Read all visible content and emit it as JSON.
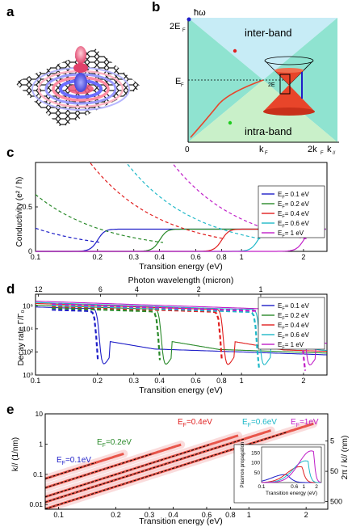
{
  "panel_labels": {
    "a": "a",
    "b": "b",
    "c": "c",
    "d": "d",
    "e": "e"
  },
  "panel_b": {
    "y_axis_label": "ħω",
    "y_tick_2ef": "2E",
    "y_tick_ef": "E",
    "sub_f": "F",
    "x_tick_0": "0",
    "x_tick_kf": "k",
    "x_tick_2kf": "2k",
    "x_axis_label": "k",
    "x_axis_sub": "//",
    "region_inter": "inter-band",
    "region_intra": "intra-band",
    "inset_label": "2E",
    "colors": {
      "inter": "#c7ecf6",
      "intra": "#c9f0c9",
      "sides": "#7fe0c9",
      "cone": "#e8452a"
    }
  },
  "chart_data": [
    {
      "id": "c",
      "type": "line",
      "ylabel": "Conductivity (e² / ħ)",
      "xlabel": "Transition energy (eV)",
      "x_scale": "log",
      "xlim": [
        0.1,
        2.6
      ],
      "ylim": [
        0,
        1.0
      ],
      "x_ticks": [
        0.1,
        0.2,
        0.3,
        0.4,
        0.6,
        0.8,
        1,
        2
      ],
      "x_tick_labels": [
        "0.1",
        "0.2",
        "0.3",
        "0.4",
        "0.6",
        "0.8",
        "1",
        "2"
      ],
      "y_ticks": [
        0,
        0.5
      ],
      "y_tick_labels": [
        "0",
        "0.5"
      ],
      "legend_position": "right",
      "series": [
        {
          "name": "E_F= 0.1 eV",
          "color": "#1f1fc8",
          "ef": 0.1
        },
        {
          "name": "E_F= 0.2 eV",
          "color": "#2a8a2a",
          "ef": 0.2
        },
        {
          "name": "E_F= 0.4 eV",
          "color": "#e01f1f",
          "ef": 0.4
        },
        {
          "name": "E_F= 0.6 eV",
          "color": "#1fb8c8",
          "ef": 0.6
        },
        {
          "name": "E_F= 1 eV",
          "color": "#c01fc8",
          "ef": 1.0
        }
      ],
      "plateau": 0.25
    },
    {
      "id": "d",
      "type": "line",
      "ylabel": "Decay rate Γ/Γ₀",
      "xlabel": "Transition energy (eV)",
      "top_label": "Photon wavelength (micron)",
      "x_scale": "log",
      "y_scale": "log",
      "xlim": [
        0.1,
        2.6
      ],
      "ylim": [
        1,
        10000000
      ],
      "x_ticks": [
        0.1,
        0.2,
        0.3,
        0.4,
        0.6,
        0.8,
        1,
        2
      ],
      "x_tick_labels": [
        "0.1",
        "0.2",
        "0.3",
        "0.4",
        "0.6",
        "0.8",
        "1",
        "2"
      ],
      "y_ticks": [
        1,
        100,
        10000,
        1000000
      ],
      "y_tick_labels": [
        "10⁰",
        "10²",
        "10⁴",
        "10⁶"
      ],
      "top_ticks": [
        12,
        6,
        4,
        2,
        1
      ],
      "top_tick_labels": [
        "12",
        "6",
        "4",
        "2",
        "1"
      ],
      "legend_position": "right",
      "series": [
        {
          "name": "E_F= 0.1 eV",
          "color": "#1f1fc8",
          "ef": 0.1
        },
        {
          "name": "E_F= 0.2 eV",
          "color": "#2a8a2a",
          "ef": 0.2
        },
        {
          "name": "E_F= 0.4 eV",
          "color": "#e01f1f",
          "ef": 0.4
        },
        {
          "name": "E_F= 0.6 eV",
          "color": "#1fb8c8",
          "ef": 0.6
        },
        {
          "name": "E_F= 1 eV",
          "color": "#c01fc8",
          "ef": 1.0
        }
      ]
    },
    {
      "id": "e",
      "type": "heatmap",
      "ylabel": "k// (1/nm)",
      "ylabel_right": "2π / k// (nm)",
      "xlabel": "Transition energy (eV)",
      "x_scale": "log",
      "y_scale": "log",
      "xlim": [
        0.085,
        2.6
      ],
      "ylim": [
        0.007,
        10
      ],
      "x_ticks": [
        0.1,
        0.2,
        0.3,
        0.4,
        0.6,
        0.8,
        1,
        2
      ],
      "x_tick_labels": [
        "0.1",
        "0.2",
        "0.3",
        "0.4",
        "0.6",
        "0.8",
        "1",
        "2"
      ],
      "y_ticks": [
        0.01,
        0.1,
        1,
        10
      ],
      "y_tick_labels": [
        "0.01",
        "0.1",
        "1",
        "10"
      ],
      "right_ticks": [
        5,
        50,
        500
      ],
      "right_tick_labels": [
        "5",
        "50",
        "500"
      ],
      "annotations": [
        {
          "text": "E_F=0.1eV",
          "color": "#1f1fc8"
        },
        {
          "text": "E_F=0.2eV",
          "color": "#2a8a2a"
        },
        {
          "text": "E_F=0.4eV",
          "color": "#e01f1f"
        },
        {
          "text": "E_F=0.6eV",
          "color": "#1fb8c8"
        },
        {
          "text": "E_F=1eV",
          "color": "#c01fc8"
        }
      ],
      "inset": {
        "ylabel": "Plasmon propagation",
        "xlabel": "Transition energy (eV)",
        "y_ticks": [
          50,
          100,
          150
        ],
        "y_tick_labels": [
          "50",
          "100",
          "150"
        ],
        "x_tick_labels": [
          "0.1",
          "0.6",
          "1",
          "2"
        ]
      }
    }
  ]
}
